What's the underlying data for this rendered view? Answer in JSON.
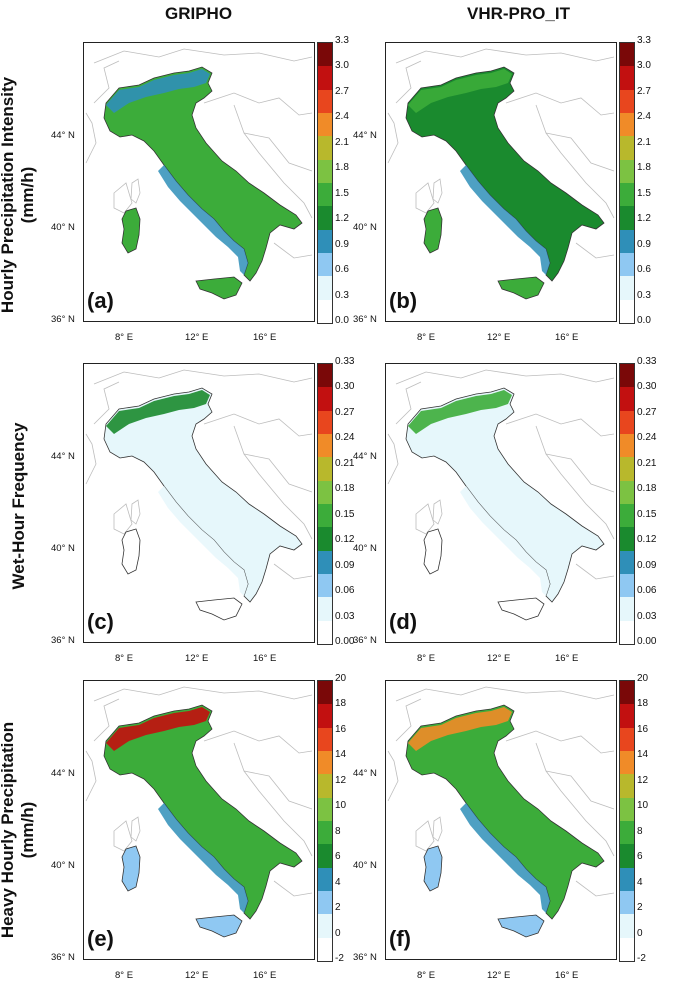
{
  "columns": [
    "GRIPHO",
    "VHR-PRO_IT"
  ],
  "rows": [
    {
      "title_line1": "Hourly Precipitation Intensity",
      "title_line2": "(mm/h)"
    },
    {
      "title_line1": "Wet-Hour Frequency",
      "title_line2": ""
    },
    {
      "title_line1": "Heavy Hourly Precipitation",
      "title_line2": "(mm/h)"
    }
  ],
  "panel_labels": [
    "(a)",
    "(b)",
    "(c)",
    "(d)",
    "(e)",
    "(f)"
  ],
  "lat_labels": [
    "44° N",
    "40° N",
    "36° N"
  ],
  "lon_labels": [
    "8° E",
    "12° E",
    "16° E"
  ],
  "colorbars": [
    {
      "ticks": [
        "3.3",
        "3.0",
        "2.7",
        "2.4",
        "2.1",
        "1.8",
        "1.5",
        "1.2",
        "0.9",
        "0.6",
        "0.3",
        "0.0"
      ]
    },
    {
      "ticks": [
        "0.33",
        "0.30",
        "0.27",
        "0.24",
        "0.21",
        "0.18",
        "0.15",
        "0.12",
        "0.09",
        "0.06",
        "0.03",
        "0.00"
      ]
    },
    {
      "ticks": [
        "20",
        "18",
        "16",
        "14",
        "12",
        "10",
        "8",
        "6",
        "4",
        "2",
        "0",
        "-2"
      ]
    }
  ],
  "palette": [
    "#ffffff",
    "#e6f7fb",
    "#8fc8f2",
    "#2f8fb8",
    "#1a8a2e",
    "#3cac3a",
    "#7cc242",
    "#b8b82c",
    "#f08b28",
    "#e8461e",
    "#c21010",
    "#7a0808"
  ],
  "panel_fills": [
    {
      "land": "#3cac3a",
      "coast": "#2f8fb8",
      "alps": "#2f8fb8",
      "islands": "#3cac3a"
    },
    {
      "land": "#1a8a2e",
      "coast": "#2f8fb8",
      "alps": "#3cac3a",
      "islands": "#3cac3a"
    },
    {
      "land": "#e6f7fb",
      "coast": "#e6f7fb",
      "alps": "#1a8a2e",
      "islands": "#ffffff"
    },
    {
      "land": "#e6f7fb",
      "coast": "#e6f7fb",
      "alps": "#3cac3a",
      "islands": "#ffffff"
    },
    {
      "land": "#3cac3a",
      "coast": "#2f8fb8",
      "alps": "#c21010",
      "islands": "#8fc8f2"
    },
    {
      "land": "#3cac3a",
      "coast": "#2f8fb8",
      "alps": "#f08b28",
      "islands": "#8fc8f2"
    }
  ]
}
